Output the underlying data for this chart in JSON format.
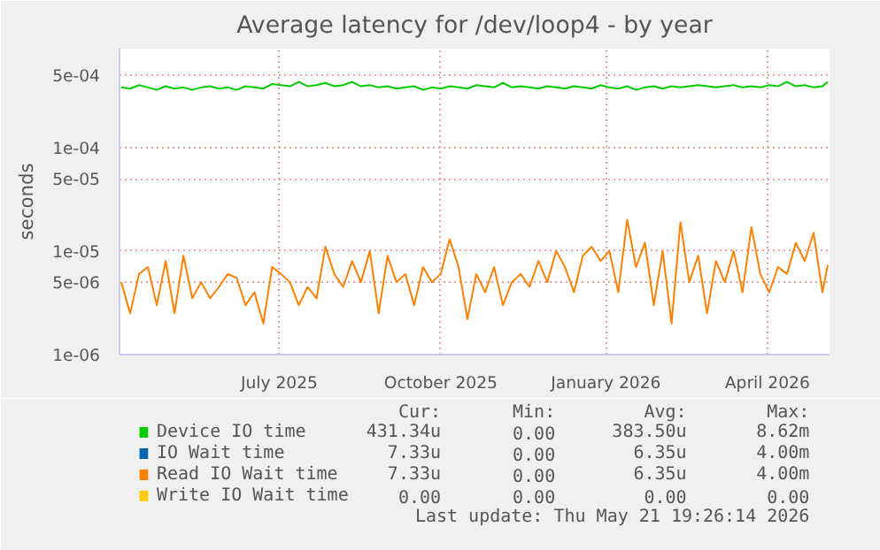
{
  "chart_data": {
    "type": "line",
    "title": "Average latency for /dev/loop4 - by year",
    "ylabel": "seconds",
    "log": "y",
    "x": [
      "2025-04-18",
      "2025-04-23",
      "2025-04-28",
      "2025-05-03",
      "2025-05-08",
      "2025-05-13",
      "2025-05-18",
      "2025-05-23",
      "2025-05-28",
      "2025-06-02",
      "2025-06-07",
      "2025-06-12",
      "2025-06-17",
      "2025-06-22",
      "2025-06-27",
      "2025-07-02",
      "2025-07-07",
      "2025-07-12",
      "2025-07-17",
      "2025-07-22",
      "2025-07-27",
      "2025-08-01",
      "2025-08-06",
      "2025-08-11",
      "2025-08-16",
      "2025-08-21",
      "2025-08-26",
      "2025-08-31",
      "2025-09-05",
      "2025-09-10",
      "2025-09-15",
      "2025-09-20",
      "2025-09-25",
      "2025-09-30",
      "2025-10-05",
      "2025-10-10",
      "2025-10-15",
      "2025-10-20",
      "2025-10-25",
      "2025-10-30",
      "2025-11-04",
      "2025-11-09",
      "2025-11-14",
      "2025-11-19",
      "2025-11-24",
      "2025-11-29",
      "2025-12-04",
      "2025-12-09",
      "2025-12-14",
      "2025-12-19",
      "2025-12-24",
      "2025-12-29",
      "2026-01-03",
      "2026-01-08",
      "2026-01-13",
      "2026-01-18",
      "2026-01-23",
      "2026-01-28",
      "2026-02-02",
      "2026-02-07",
      "2026-02-12",
      "2026-02-17",
      "2026-02-22",
      "2026-02-27",
      "2026-03-04",
      "2026-03-09",
      "2026-03-14",
      "2026-03-19",
      "2026-03-24",
      "2026-03-29",
      "2026-04-03",
      "2026-04-08",
      "2026-04-13",
      "2026-04-18",
      "2026-04-23",
      "2026-04-28",
      "2026-05-03",
      "2026-05-08",
      "2026-05-13",
      "2026-05-18",
      "2026-05-21"
    ],
    "series": [
      {
        "name": "Device IO time",
        "color": "#00cc00",
        "values": [
          0.00038,
          0.00037,
          0.0004,
          0.00038,
          0.00036,
          0.00039,
          0.00037,
          0.00038,
          0.00036,
          0.00038,
          0.00039,
          0.00037,
          0.00038,
          0.00036,
          0.00039,
          0.00038,
          0.00037,
          0.00041,
          0.0004,
          0.00039,
          0.00043,
          0.00039,
          0.0004,
          0.00042,
          0.00039,
          0.0004,
          0.00043,
          0.00039,
          0.0004,
          0.00038,
          0.00039,
          0.00037,
          0.00038,
          0.00039,
          0.00036,
          0.00038,
          0.00037,
          0.00039,
          0.00038,
          0.00037,
          0.0004,
          0.00039,
          0.00038,
          0.00042,
          0.00038,
          0.00039,
          0.00038,
          0.00037,
          0.00039,
          0.00038,
          0.00037,
          0.00039,
          0.00038,
          0.00037,
          0.0004,
          0.00038,
          0.00037,
          0.00039,
          0.00036,
          0.00038,
          0.00039,
          0.00037,
          0.00039,
          0.00038,
          0.00039,
          0.0004,
          0.00039,
          0.00038,
          0.00039,
          0.0004,
          0.00038,
          0.00039,
          0.00038,
          0.0004,
          0.00039,
          0.00043,
          0.00039,
          0.0004,
          0.00038,
          0.00039,
          0.00043134
        ]
      },
      {
        "name": "IO Wait time",
        "color": "#0066b3",
        "values": [
          null,
          null,
          null,
          null,
          null,
          null,
          null,
          null,
          null,
          null,
          null,
          null,
          null,
          null,
          null,
          null,
          null,
          null,
          null,
          null,
          null,
          null,
          null,
          null,
          null,
          null,
          null,
          null,
          null,
          null,
          null,
          null,
          null,
          null,
          null,
          null,
          null,
          null,
          null,
          null,
          null,
          null,
          null,
          null,
          null,
          null,
          null,
          null,
          null,
          null,
          null,
          null,
          null,
          null,
          null,
          null,
          null,
          null,
          null,
          null,
          null,
          null,
          null,
          null,
          null,
          null,
          null,
          null,
          null,
          null,
          null,
          null,
          null,
          null,
          null,
          null,
          null,
          null,
          null,
          null,
          null
        ]
      },
      {
        "name": "Read IO Wait time",
        "color": "#ff8000",
        "values": [
          5e-06,
          2.5e-06,
          6e-06,
          7e-06,
          3e-06,
          8e-06,
          2.5e-06,
          9e-06,
          3.5e-06,
          5e-06,
          3.5e-06,
          4.5e-06,
          6e-06,
          5.5e-06,
          3e-06,
          4e-06,
          2e-06,
          7e-06,
          6e-06,
          5e-06,
          3e-06,
          4.5e-06,
          3.5e-06,
          1.1e-05,
          6e-06,
          4.5e-06,
          8e-06,
          5e-06,
          1e-05,
          2.5e-06,
          9e-06,
          5e-06,
          6e-06,
          3e-06,
          7e-06,
          5e-06,
          6e-06,
          1.3e-05,
          7e-06,
          2.2e-06,
          6e-06,
          4e-06,
          7e-06,
          3e-06,
          5e-06,
          6e-06,
          4.5e-06,
          8e-06,
          5e-06,
          1e-05,
          7e-06,
          4e-06,
          9e-06,
          1.1e-05,
          8e-06,
          1e-05,
          4e-06,
          2e-05,
          7e-06,
          1.2e-05,
          3e-06,
          1e-05,
          2e-06,
          1.9e-05,
          5e-06,
          9e-06,
          2.5e-06,
          8e-06,
          5e-06,
          1e-05,
          4e-06,
          1.7e-05,
          6e-06,
          4e-06,
          7e-06,
          6e-06,
          1.2e-05,
          8e-06,
          1.5e-05,
          4e-06,
          7.33e-06
        ]
      },
      {
        "name": "Write IO Wait time",
        "color": "#ffcc00",
        "values": [
          null,
          null,
          null,
          null,
          null,
          null,
          null,
          null,
          null,
          null,
          null,
          null,
          null,
          null,
          null,
          null,
          null,
          null,
          null,
          null,
          null,
          null,
          null,
          null,
          null,
          null,
          null,
          null,
          null,
          null,
          null,
          null,
          null,
          null,
          null,
          null,
          null,
          null,
          null,
          null,
          null,
          null,
          null,
          null,
          null,
          null,
          null,
          null,
          null,
          null,
          null,
          null,
          null,
          null,
          null,
          null,
          null,
          null,
          null,
          null,
          null,
          null,
          null,
          null,
          null,
          null,
          null,
          null,
          null,
          null,
          null,
          null,
          null,
          null,
          null,
          null,
          null,
          null,
          null,
          null,
          null
        ]
      }
    ],
    "xlim": [
      "2025-04-17",
      "2026-05-22"
    ],
    "xticks": [
      {
        "value": "2025-07-16",
        "label": "July 2025"
      },
      {
        "value": "2025-10-15",
        "label": "October 2025"
      },
      {
        "value": "2026-01-16",
        "label": "January 2026"
      },
      {
        "value": "2026-04-17",
        "label": "April 2026"
      }
    ],
    "ylim": [
      1e-06,
      0.0009
    ],
    "yticks": [
      {
        "value": 1e-06,
        "label": "1e-06"
      },
      {
        "value": 5e-06,
        "label": "5e-06"
      },
      {
        "value": 1e-05,
        "label": "1e-05"
      },
      {
        "value": 5e-05,
        "label": "5e-05"
      },
      {
        "value": 0.0001,
        "label": "1e-04"
      },
      {
        "value": 0.0005,
        "label": "5e-04"
      }
    ],
    "grid": true,
    "legend": "bottom",
    "annotations": [
      "Cur:",
      "Min:",
      "Avg:",
      "Max:",
      "431.34u",
      "0.00",
      "383.50u",
      "8.62m",
      "7.33u",
      "0.00",
      "6.35u",
      "4.00m",
      "7.33u",
      "0.00",
      "6.35u",
      "4.00m",
      "0.00",
      "0.00",
      "0.00",
      "0.00",
      "Last update: Thu May 21 19:26:14 2026"
    ]
  }
}
